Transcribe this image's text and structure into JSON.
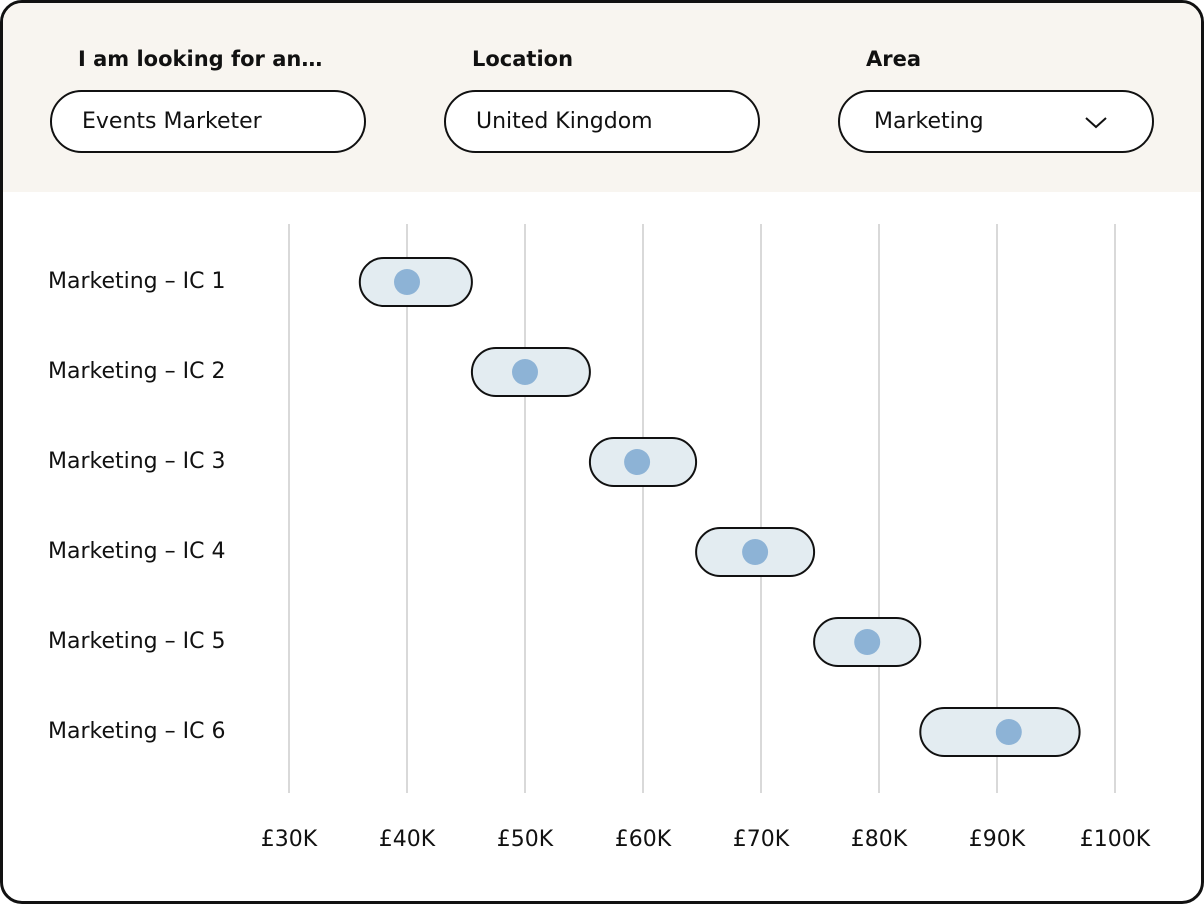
{
  "filters": [
    {
      "label": "I am looking for an…",
      "value": "Events Marketer"
    },
    {
      "label": "Location",
      "value": "United Kingdom"
    },
    {
      "label": "Area",
      "value": "Marketing"
    }
  ],
  "chart_data": {
    "type": "range",
    "categories": [
      "Marketing – IC 1",
      "Marketing – IC 2",
      "Marketing – IC 3",
      "Marketing – IC 4",
      "Marketing – IC 5",
      "Marketing – IC 6"
    ],
    "low": [
      36000,
      45500,
      55500,
      64500,
      74500,
      83500
    ],
    "high": [
      45500,
      55500,
      64500,
      74500,
      83500,
      97000
    ],
    "values": [
      40000,
      50000,
      59500,
      69500,
      79000,
      91000
    ],
    "range_color": "#e3ecf1",
    "color": "#8db3d6",
    "xlim": [
      30000,
      100000
    ],
    "xticks": [
      {
        "value": 30000,
        "label": "£30K"
      },
      {
        "value": 40000,
        "label": "£40K"
      },
      {
        "value": 50000,
        "label": "£50K"
      },
      {
        "value": 60000,
        "label": "£60K"
      },
      {
        "value": 70000,
        "label": "£70K"
      },
      {
        "value": 80000,
        "label": "£80K"
      },
      {
        "value": 90000,
        "label": "£90K"
      },
      {
        "value": 100000,
        "label": "£100K"
      }
    ],
    "grid": true
  }
}
